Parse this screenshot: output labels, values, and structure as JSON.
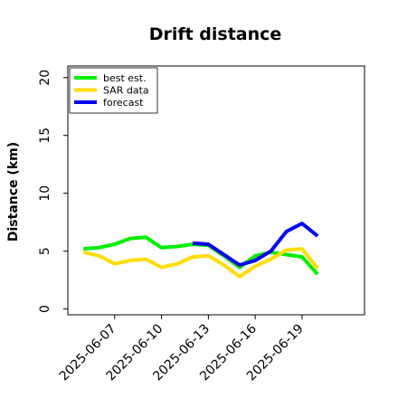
{
  "chart_data": {
    "type": "line",
    "title": "Drift distance",
    "xlabel": "",
    "ylabel": "Distance (km)",
    "ylim": [
      -0.5,
      21
    ],
    "xlim": [
      "2025-06-04",
      "2025-06-23"
    ],
    "yticks": [
      0,
      5,
      10,
      15,
      20
    ],
    "xticks": [
      "2025-06-07",
      "2025-06-10",
      "2025-06-13",
      "2025-06-16",
      "2025-06-19"
    ],
    "grid": false,
    "legend_position": "top-left",
    "series": [
      {
        "name": "best est.",
        "color": "#00ee00",
        "x": [
          "2025-06-05",
          "2025-06-06",
          "2025-06-07",
          "2025-06-08",
          "2025-06-09",
          "2025-06-10",
          "2025-06-11",
          "2025-06-12",
          "2025-06-13",
          "2025-06-14",
          "2025-06-15",
          "2025-06-16",
          "2025-06-17",
          "2025-06-18",
          "2025-06-19",
          "2025-06-20"
        ],
        "values": [
          5.2,
          5.3,
          5.6,
          6.1,
          6.2,
          5.3,
          5.4,
          5.6,
          5.5,
          4.6,
          3.6,
          4.6,
          4.9,
          4.7,
          4.5,
          3.0
        ]
      },
      {
        "name": "SAR data",
        "color": "#ffdd00",
        "x": [
          "2025-06-05",
          "2025-06-06",
          "2025-06-07",
          "2025-06-08",
          "2025-06-09",
          "2025-06-10",
          "2025-06-11",
          "2025-06-12",
          "2025-06-13",
          "2025-06-14",
          "2025-06-15",
          "2025-06-16",
          "2025-06-17",
          "2025-06-18",
          "2025-06-19",
          "2025-06-20"
        ],
        "values": [
          4.9,
          4.6,
          3.9,
          4.2,
          4.3,
          3.6,
          3.9,
          4.5,
          4.6,
          3.8,
          2.8,
          3.7,
          4.3,
          5.1,
          5.2,
          3.5
        ]
      },
      {
        "name": "forecast",
        "color": "#0000ee",
        "x": [
          "2025-06-12",
          "2025-06-13",
          "2025-06-14",
          "2025-06-15",
          "2025-06-16",
          "2025-06-17",
          "2025-06-18",
          "2025-06-19",
          "2025-06-20"
        ],
        "values": [
          5.7,
          5.6,
          4.7,
          3.8,
          4.2,
          5.0,
          6.7,
          7.4,
          6.3
        ]
      }
    ]
  }
}
